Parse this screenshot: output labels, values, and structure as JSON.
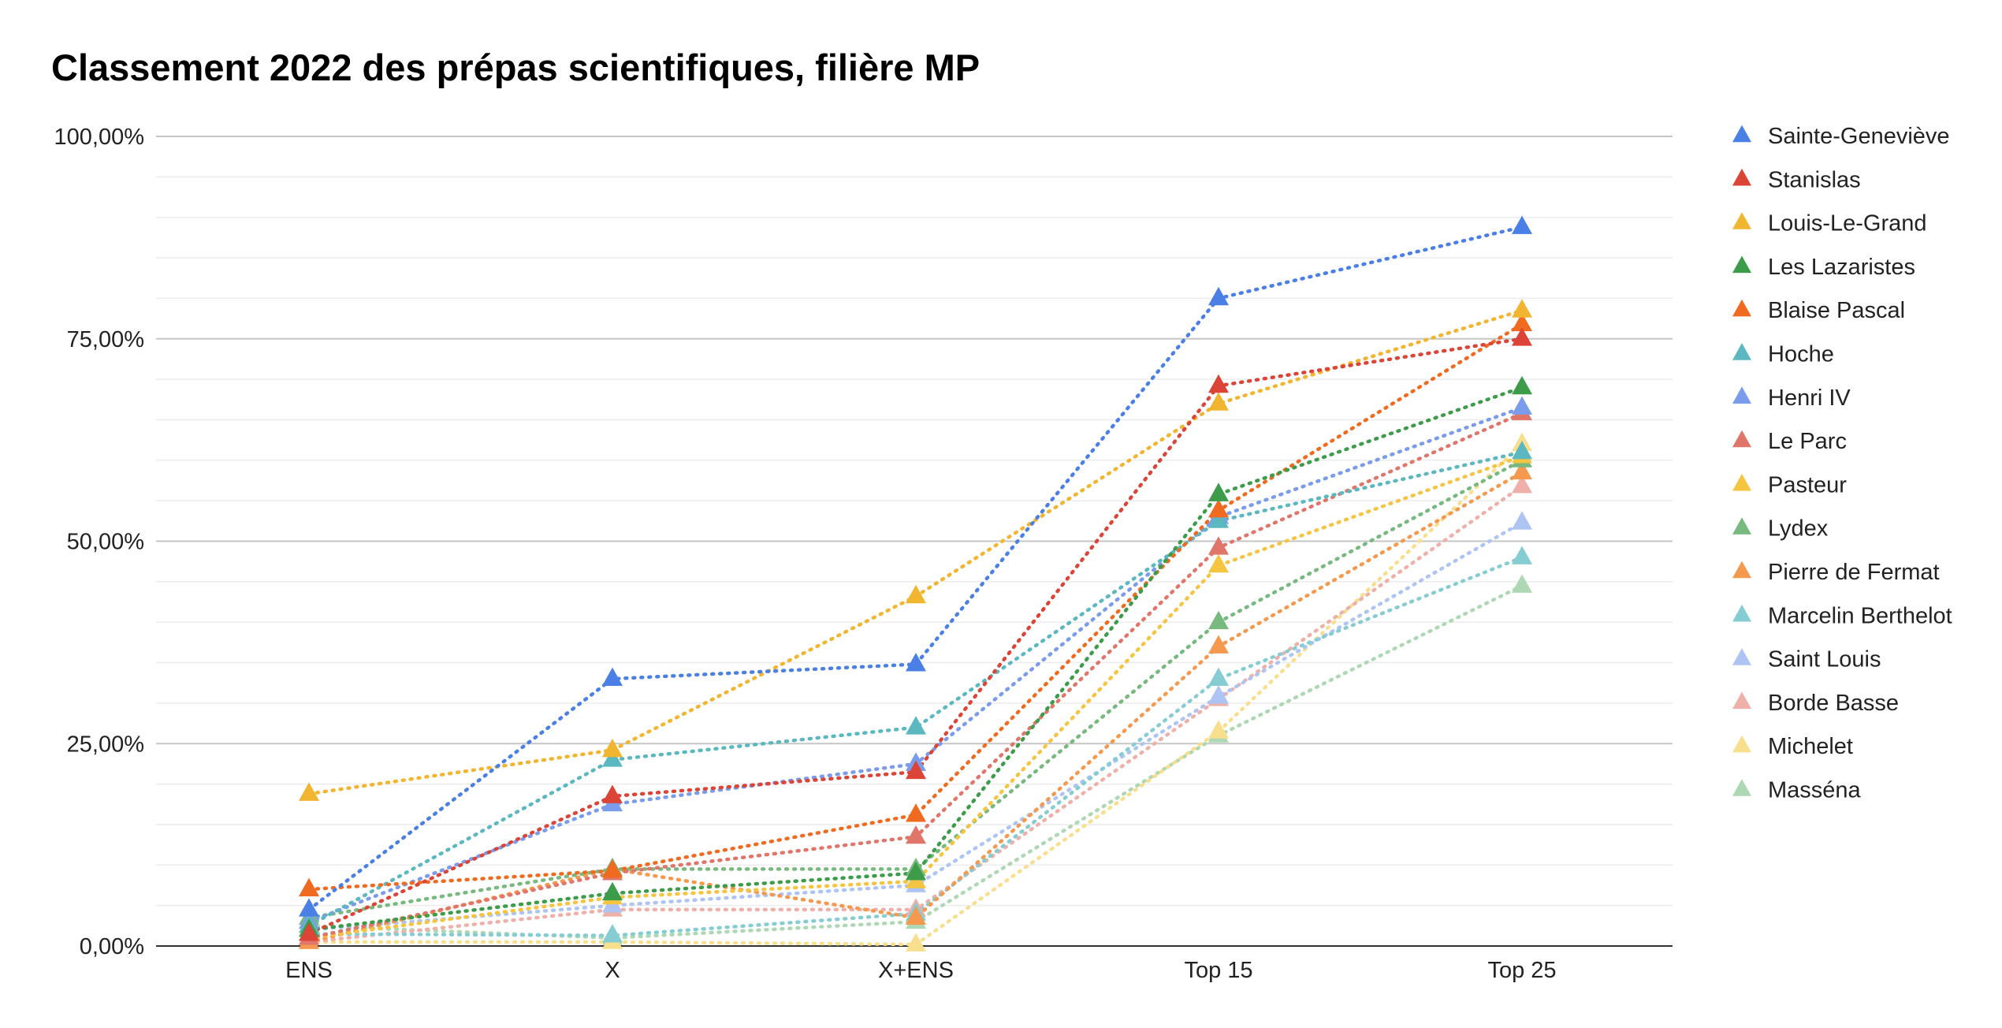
{
  "chart_data": {
    "type": "line",
    "title": "Classement 2022 des prépas scientifiques, filière MP",
    "xlabel": "",
    "ylabel": "",
    "categories": [
      "ENS",
      "X",
      "X+ENS",
      "Top 15",
      "Top 25"
    ],
    "y_ticks": [
      "0,00%",
      "25,00%",
      "50,00%",
      "75,00%",
      "100,00%"
    ],
    "ylim": [
      0,
      100
    ],
    "grid": true,
    "line_style": "dotted",
    "marker": "triangle",
    "legend_position": "right",
    "series": [
      {
        "name": "Sainte-Geneviève",
        "color": "#4a7fe6",
        "values": [
          4.5,
          33.0,
          34.8,
          80.0,
          88.8
        ]
      },
      {
        "name": "Stanislas",
        "color": "#db4437",
        "values": [
          1.5,
          18.5,
          21.5,
          69.2,
          75.0
        ]
      },
      {
        "name": "Louis-Le-Grand",
        "color": "#f1b52f",
        "values": [
          18.8,
          24.2,
          43.2,
          67.0,
          78.5
        ]
      },
      {
        "name": "Les Lazaristes",
        "color": "#3c9c4a",
        "values": [
          2.0,
          6.5,
          9.0,
          55.8,
          69.0
        ]
      },
      {
        "name": "Blaise Pascal",
        "color": "#f06b20",
        "values": [
          7.0,
          9.3,
          16.2,
          53.8,
          76.8
        ]
      },
      {
        "name": "Hoche",
        "color": "#5bb8c0",
        "values": [
          2.5,
          23.0,
          27.0,
          52.5,
          61.0
        ]
      },
      {
        "name": "Henri IV",
        "color": "#7a9cea",
        "values": [
          3.0,
          17.5,
          22.5,
          53.0,
          66.5
        ]
      },
      {
        "name": "Le Parc",
        "color": "#e0766a",
        "values": [
          1.0,
          9.0,
          13.5,
          49.2,
          65.8
        ]
      },
      {
        "name": "Pasteur",
        "color": "#f5c542",
        "values": [
          1.0,
          6.0,
          8.0,
          47.0,
          60.5
        ]
      },
      {
        "name": "Lydex",
        "color": "#77b97f",
        "values": [
          3.5,
          9.5,
          9.5,
          40.0,
          60.0
        ]
      },
      {
        "name": "Pierre de Fermat",
        "color": "#f4994e",
        "values": [
          0.5,
          9.5,
          3.5,
          37.0,
          58.5
        ]
      },
      {
        "name": "Marcelin Berthelot",
        "color": "#86cdd3",
        "values": [
          1.5,
          1.3,
          4.0,
          33.0,
          48.0
        ]
      },
      {
        "name": "Saint Louis",
        "color": "#aec4f2",
        "values": [
          2.0,
          5.0,
          7.5,
          30.8,
          52.3
        ]
      },
      {
        "name": "Borde Basse",
        "color": "#eeb0a8",
        "values": [
          0.5,
          4.5,
          4.5,
          30.5,
          56.8
        ]
      },
      {
        "name": "Michelet",
        "color": "#f8df8e",
        "values": [
          0.5,
          0.5,
          0.2,
          26.5,
          62.0
        ]
      },
      {
        "name": "Masséna",
        "color": "#aed8b4",
        "values": [
          2.5,
          1.0,
          3.0,
          26.0,
          44.5
        ]
      }
    ]
  }
}
